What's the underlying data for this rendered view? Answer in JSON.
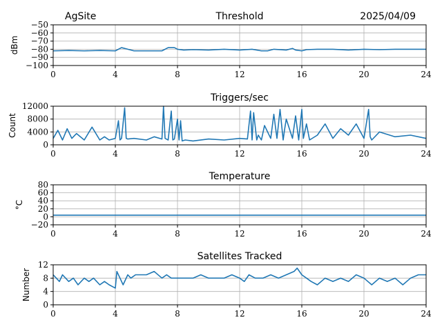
{
  "header": {
    "site": "AgSite",
    "date": "2025/04/09"
  },
  "colors": {
    "series": "#1f77b4",
    "grid": "#b0b0b0",
    "axis": "#000000"
  },
  "chart_data": [
    {
      "type": "line",
      "title": "Threshold",
      "ylabel": "dBm",
      "xlim": [
        0,
        24
      ],
      "ylim": [
        -100,
        -50
      ],
      "xticks": [
        0,
        4,
        8,
        12,
        16,
        20,
        24
      ],
      "yticks": [
        -100,
        -90,
        -80,
        -70,
        -60,
        -50
      ],
      "ytick_labels": [
        "−100",
        "−90",
        "−80",
        "−70",
        "−60",
        "−50"
      ],
      "grid": true,
      "x": [
        0,
        1,
        2,
        3,
        4,
        4.4,
        4.8,
        5.2,
        6,
        7,
        7.4,
        7.8,
        8,
        8.4,
        9,
        10,
        11,
        12,
        12.8,
        13.4,
        13.8,
        14.2,
        15,
        15.4,
        15.6,
        16,
        16.3,
        17,
        18,
        19,
        20,
        21,
        22,
        23,
        24
      ],
      "series": [
        {
          "values": [
            -82,
            -81.5,
            -82,
            -81.5,
            -82,
            -78,
            -80,
            -82,
            -82,
            -82,
            -78,
            -78,
            -80,
            -81,
            -80.5,
            -81,
            -80,
            -81,
            -80,
            -82,
            -82,
            -80,
            -81,
            -79,
            -81,
            -82,
            -80.5,
            -80,
            -80,
            -81,
            -80,
            -80.5,
            -80,
            -80,
            -80
          ]
        }
      ]
    },
    {
      "type": "line",
      "title": "Triggers/sec",
      "ylabel": "Count",
      "xlim": [
        0,
        24
      ],
      "ylim": [
        0,
        12000
      ],
      "xticks": [
        0,
        4,
        8,
        12,
        16,
        20,
        24
      ],
      "yticks": [
        0,
        4000,
        8000,
        12000
      ],
      "ytick_labels": [
        "0",
        "4000",
        "8000",
        "12000"
      ],
      "grid": true,
      "x": [
        0,
        0.3,
        0.6,
        0.9,
        1.2,
        1.5,
        2,
        2.5,
        3,
        3.3,
        3.6,
        4,
        4.2,
        4.3,
        4.4,
        4.6,
        4.7,
        4.8,
        5.2,
        6,
        6.5,
        7,
        7.1,
        7.2,
        7.4,
        7.6,
        7.7,
        7.8,
        8,
        8.1,
        8.2,
        8.3,
        8.5,
        9,
        10,
        11,
        12,
        12.5,
        12.7,
        12.8,
        12.9,
        13.1,
        13.2,
        13.4,
        13.6,
        14,
        14.2,
        14.4,
        14.6,
        14.8,
        14.9,
        15,
        15.4,
        15.6,
        15.8,
        16,
        16.1,
        16.3,
        16.5,
        17,
        17.5,
        18,
        18.5,
        19,
        19.5,
        20,
        20.3,
        20.4,
        20.5,
        21,
        22,
        23,
        24
      ],
      "series": [
        {
          "values": [
            2000,
            4500,
            1500,
            5000,
            2000,
            3500,
            1500,
            5500,
            1500,
            2500,
            1500,
            2000,
            7500,
            1500,
            2000,
            11500,
            2000,
            1800,
            2000,
            1500,
            2500,
            1800,
            12000,
            2000,
            1500,
            10500,
            1500,
            1800,
            8000,
            1500,
            7500,
            1200,
            1500,
            1200,
            1800,
            1500,
            2000,
            1800,
            10500,
            1500,
            10000,
            1500,
            3000,
            1500,
            6000,
            2000,
            9500,
            2000,
            11000,
            1500,
            5000,
            8000,
            2000,
            9000,
            1500,
            11000,
            2000,
            6500,
            1500,
            3000,
            6500,
            2000,
            5000,
            3000,
            6500,
            2000,
            11000,
            2500,
            1500,
            4000,
            2500,
            3000,
            2000
          ]
        }
      ]
    },
    {
      "type": "line",
      "title": "Temperature",
      "ylabel": "°C",
      "xlim": [
        0,
        24
      ],
      "ylim": [
        -20,
        80
      ],
      "xticks": [
        0,
        4,
        8,
        12,
        16,
        20,
        24
      ],
      "yticks": [
        -20,
        0,
        20,
        40,
        60,
        80
      ],
      "ytick_labels": [
        "−20",
        "0",
        "20",
        "40",
        "60",
        "80"
      ],
      "grid": true,
      "x": [
        0,
        24
      ],
      "series": [
        {
          "values": [
            4,
            4
          ]
        }
      ]
    },
    {
      "type": "line",
      "title": "Satellites Tracked",
      "ylabel": "Number",
      "xlim": [
        0,
        24
      ],
      "ylim": [
        0,
        12
      ],
      "xticks": [
        0,
        4,
        8,
        12,
        16,
        20,
        24
      ],
      "yticks": [
        0,
        4,
        8,
        12
      ],
      "ytick_labels": [
        "0",
        "4",
        "8",
        "12"
      ],
      "grid": true,
      "x": [
        0,
        0.2,
        0.4,
        0.6,
        0.8,
        1,
        1.3,
        1.6,
        2,
        2.3,
        2.6,
        3,
        3.3,
        3.6,
        4,
        4.1,
        4.3,
        4.5,
        4.8,
        5,
        5.3,
        6,
        6.5,
        7,
        7.3,
        7.6,
        8,
        8.5,
        9,
        9.5,
        10,
        10.5,
        11,
        11.5,
        12,
        12.3,
        12.6,
        13,
        13.5,
        14,
        14.5,
        15,
        15.5,
        15.7,
        16,
        16.3,
        16.6,
        17,
        17.5,
        18,
        18.5,
        19,
        19.5,
        20,
        20.5,
        21,
        21.5,
        22,
        22.5,
        23,
        23.5,
        24
      ],
      "series": [
        {
          "values": [
            9,
            8,
            7,
            9,
            8,
            7,
            8,
            6,
            8,
            7,
            8,
            6,
            7,
            6,
            5,
            10,
            8,
            6,
            9,
            8,
            9,
            9,
            10,
            8,
            9,
            8,
            8,
            8,
            8,
            9,
            8,
            8,
            8,
            9,
            8,
            7,
            9,
            8,
            8,
            9,
            8,
            9,
            10,
            11,
            9,
            8,
            7,
            6,
            8,
            7,
            8,
            7,
            9,
            8,
            6,
            8,
            7,
            8,
            6,
            8,
            9,
            9
          ]
        }
      ]
    }
  ]
}
